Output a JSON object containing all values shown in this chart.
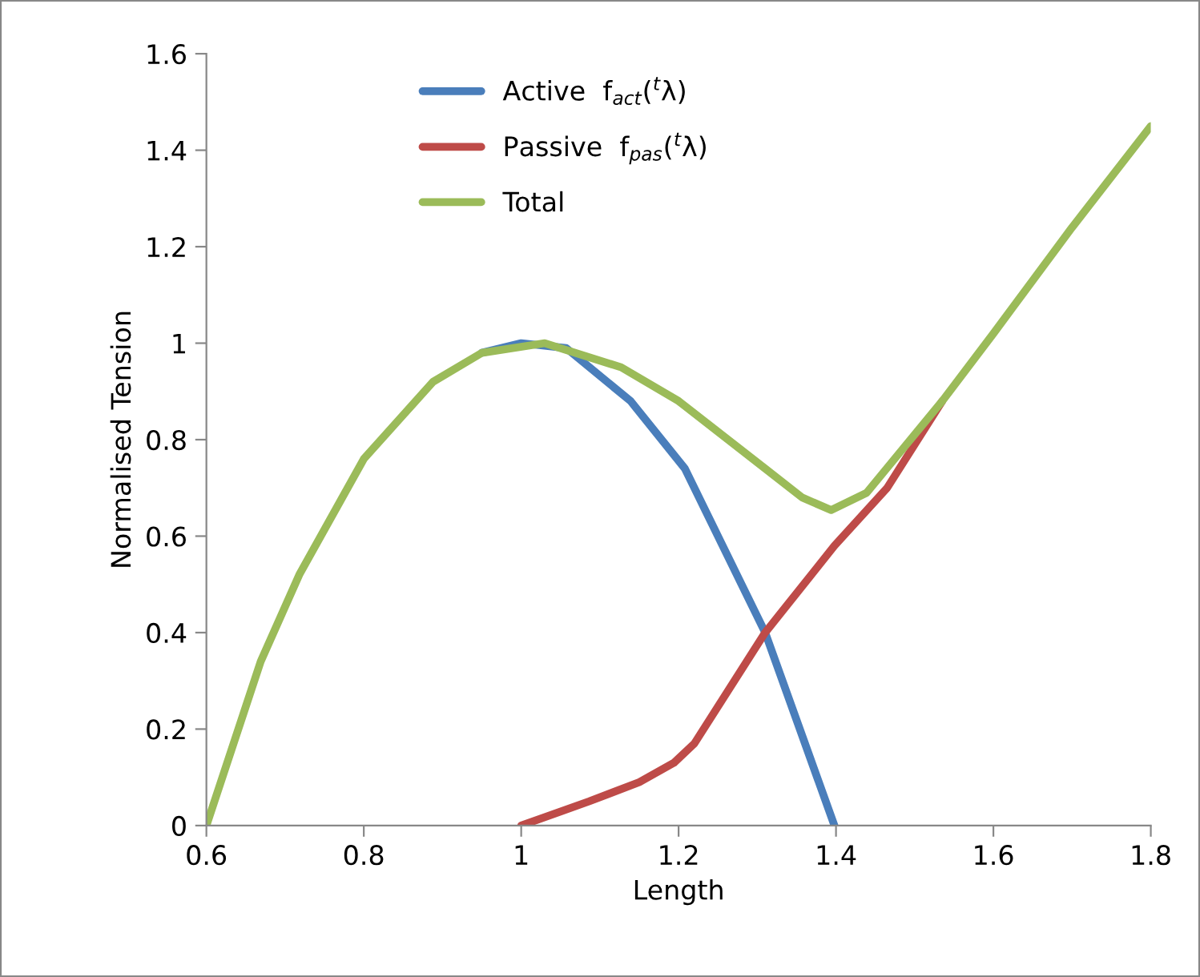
{
  "chart_data": {
    "type": "line",
    "xlabel": "Length",
    "ylabel": "Normalised Tension",
    "xlim": [
      0.6,
      1.8
    ],
    "xticks": [
      0.6,
      0.8,
      1,
      1.2,
      1.4,
      1.6,
      1.8
    ],
    "ylim": [
      0,
      1.6
    ],
    "yticks": [
      0,
      0.2,
      0.4,
      0.6,
      0.8,
      1,
      1.2,
      1.4,
      1.6
    ],
    "grid": false,
    "legend": "top",
    "marker": "none",
    "line_style": "solid",
    "series": [
      {
        "name": "Active  f$_{act}$($^{t}$λ)",
        "color": "#4a7ebb",
        "x": [
          0.95,
          1.0,
          1.057,
          1.139,
          1.208,
          1.235,
          1.31,
          1.398
        ],
        "values": [
          0.98,
          1.0,
          0.99,
          0.88,
          0.74,
          0.65,
          0.4,
          0
        ]
      },
      {
        "name": "Passive  f$_{pas}$($^{t}$λ)",
        "color": "#be4b48",
        "x": [
          1.0,
          1.086,
          1.15,
          1.194,
          1.22,
          1.31,
          1.398,
          1.465,
          1.535
        ],
        "values": [
          0,
          0.05,
          0.09,
          0.13,
          0.17,
          0.4,
          0.58,
          0.7,
          0.88
        ]
      },
      {
        "name": "Total",
        "color": "#9bbb59",
        "x": [
          0.6,
          0.669,
          0.718,
          0.8,
          0.888,
          0.95,
          1.03,
          1.127,
          1.2,
          1.31,
          1.357,
          1.394,
          1.439,
          1.535,
          1.6,
          1.7,
          1.8
        ],
        "values": [
          0,
          0.34,
          0.52,
          0.76,
          0.92,
          0.98,
          1.0,
          0.95,
          0.88,
          0.74,
          0.68,
          0.654,
          0.69,
          0.88,
          1.02,
          1.24,
          1.45
        ]
      }
    ]
  }
}
